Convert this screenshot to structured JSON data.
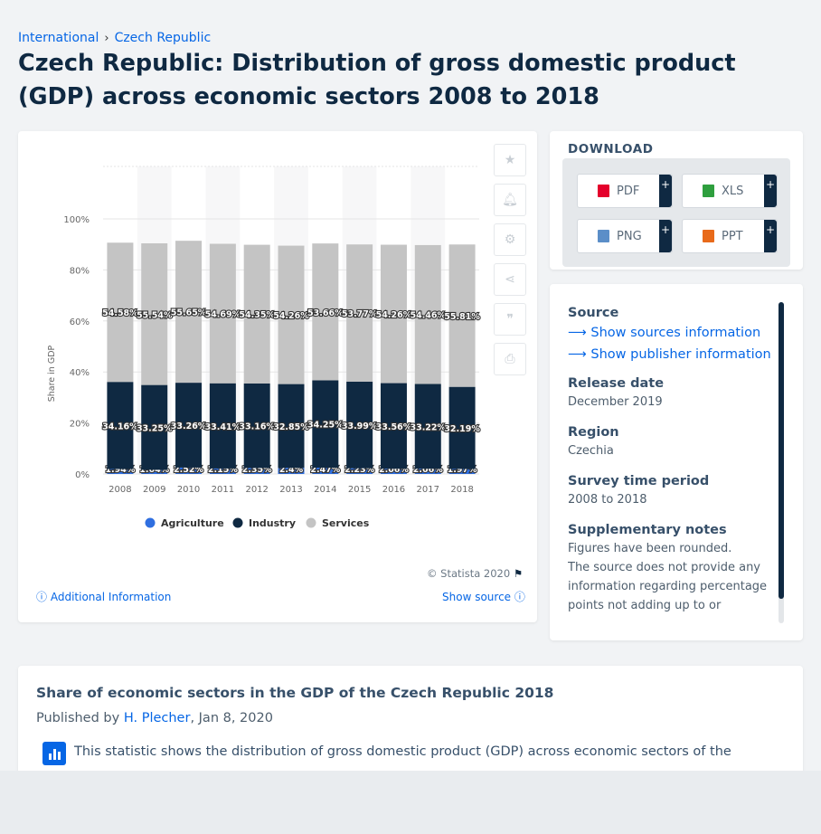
{
  "breadcrumb": {
    "items": [
      "International",
      "Czech Republic"
    ]
  },
  "page_title": "Czech Republic: Distribution of gross domestic product (GDP) across economic sectors 2008 to 2018",
  "chart_footer": {
    "copyright": "© Statista 2020",
    "additional_info": "Additional Information",
    "show_source": "Show source"
  },
  "download": {
    "title": "DOWNLOAD",
    "buttons": [
      "PDF",
      "XLS",
      "PNG",
      "PPT"
    ],
    "plus": "+",
    "colors": {
      "pdf": "#e4002b",
      "xls": "#2e9f3e",
      "png": "#5b8ec8",
      "ppt": "#e86a1a"
    }
  },
  "info": {
    "source_label": "Source",
    "show_sources": "Show sources information",
    "show_publisher": "Show publisher information",
    "release_label": "Release date",
    "release_value": "December 2019",
    "region_label": "Region",
    "region_value": "Czechia",
    "period_label": "Survey time period",
    "period_value": "2008 to 2018",
    "notes_label": "Supplementary notes",
    "notes_value": "Figures have been rounded.\nThe source does not provide any information regarding percentage points not adding up to or"
  },
  "description": {
    "title": "Share of economic sectors in the GDP of the Czech Republic 2018",
    "published_prefix": "Published by",
    "author": "H. Plecher",
    "date": ", Jan 8, 2020",
    "text": "This statistic shows the distribution of gross domestic product (GDP) across economic sectors of the"
  },
  "colors": {
    "agriculture": "#2f6fe0",
    "industry": "#0f2942",
    "services": "#c4c4c4",
    "accent": "#0666e5"
  },
  "chart_data": {
    "type": "bar",
    "stacked": true,
    "categories": [
      "2008",
      "2009",
      "2010",
      "2011",
      "2012",
      "2013",
      "2014",
      "2015",
      "2016",
      "2017",
      "2018"
    ],
    "series": [
      {
        "name": "Agriculture",
        "values": [
          1.94,
          1.64,
          2.52,
          2.15,
          2.35,
          2.4,
          2.47,
          2.23,
          2.06,
          2.06,
          1.97
        ],
        "labels": [
          "1.94%",
          "1.64%",
          "2.52%",
          "2.15%",
          "2.35%",
          "2.4%",
          "2.47%",
          "2.23%",
          "2.06%",
          "2.06%",
          "1.97%"
        ]
      },
      {
        "name": "Industry",
        "values": [
          34.16,
          33.25,
          33.26,
          33.41,
          33.16,
          32.85,
          34.25,
          33.99,
          33.56,
          33.22,
          32.19
        ],
        "labels": [
          "34.16%",
          "33.25%",
          "33.26%",
          "33.41%",
          "33.16%",
          "32.85%",
          "34.25%",
          "33.99%",
          "33.56%",
          "33.22%",
          "32.19%"
        ]
      },
      {
        "name": "Services",
        "values": [
          54.58,
          55.54,
          55.65,
          54.69,
          54.35,
          54.26,
          53.66,
          53.77,
          54.26,
          54.46,
          55.81
        ],
        "labels": [
          "54.58%",
          "55.54%",
          "55.65%",
          "54.69%",
          "54.35%",
          "54.26%",
          "53.66%",
          "53.77%",
          "54.26%",
          "54.46%",
          "55.81%"
        ]
      }
    ],
    "ylabel": "Share in GDP",
    "yticks": [
      "0%",
      "20%",
      "40%",
      "60%",
      "80%",
      "100%"
    ],
    "ylim": [
      0,
      100
    ],
    "legend_position": "bottom",
    "grid": true
  }
}
